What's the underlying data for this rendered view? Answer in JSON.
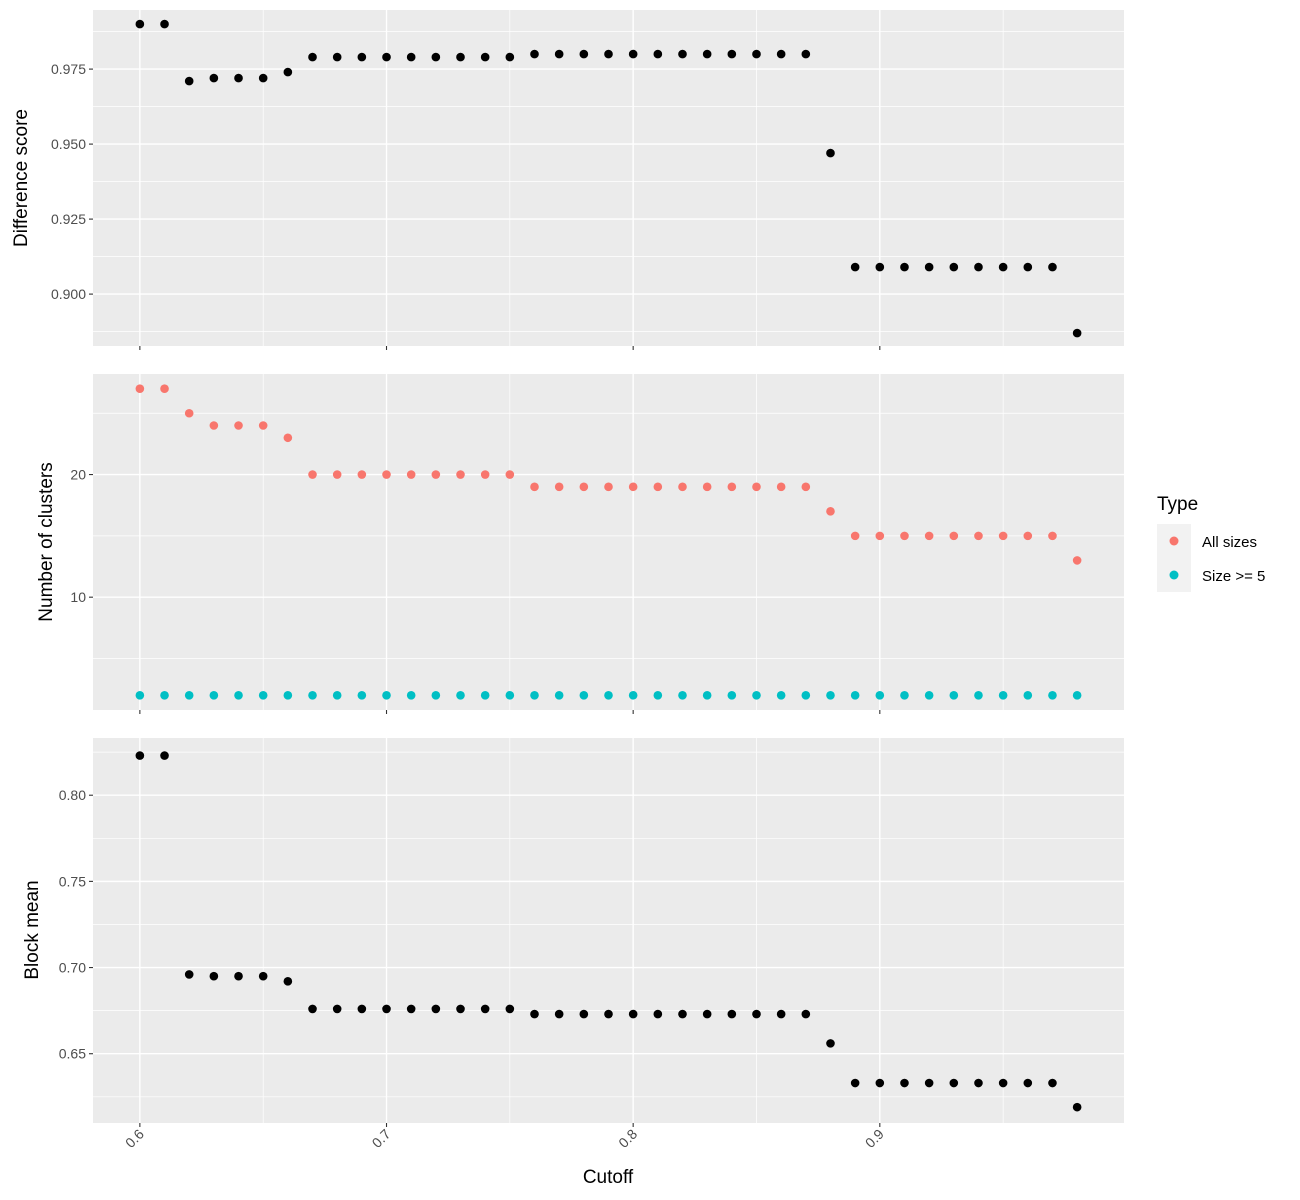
{
  "chart_data": {
    "type": "scatter",
    "xlabel": "Cutoff",
    "x_ticks": [
      0.6,
      0.7,
      0.8,
      0.9
    ],
    "x_tick_labels": [
      "0.6",
      "0.7",
      "0.8",
      "0.9"
    ],
    "xlim": [
      0.581,
      0.999
    ],
    "x": [
      0.6,
      0.61,
      0.62,
      0.63,
      0.64,
      0.65,
      0.66,
      0.67,
      0.68,
      0.69,
      0.7,
      0.71,
      0.72,
      0.73,
      0.74,
      0.75,
      0.76,
      0.77,
      0.78,
      0.79,
      0.8,
      0.81,
      0.82,
      0.83,
      0.84,
      0.85,
      0.86,
      0.87,
      0.88,
      0.89,
      0.9,
      0.91,
      0.92,
      0.93,
      0.94,
      0.95,
      0.96,
      0.97,
      0.98
    ],
    "legend": {
      "title": "Type",
      "position": "right",
      "entries": [
        {
          "label": "All sizes",
          "color": "#F8766D"
        },
        {
          "label": "Size >= 5",
          "color": "#00BFC4"
        }
      ]
    },
    "panels": [
      {
        "ylabel": "Difference score",
        "ylim": [
          0.8827,
          0.9947
        ],
        "y_ticks": [
          0.9,
          0.925,
          0.95,
          0.975
        ],
        "y_tick_labels": [
          "0.900",
          "0.925",
          "0.950",
          "0.975"
        ],
        "series": [
          {
            "color": "#000000",
            "values": [
              0.99,
              0.99,
              0.971,
              0.972,
              0.972,
              0.972,
              0.974,
              0.979,
              0.979,
              0.979,
              0.979,
              0.979,
              0.979,
              0.979,
              0.979,
              0.979,
              0.98,
              0.98,
              0.98,
              0.98,
              0.98,
              0.98,
              0.98,
              0.98,
              0.98,
              0.98,
              0.98,
              0.98,
              0.947,
              0.909,
              0.909,
              0.909,
              0.909,
              0.909,
              0.909,
              0.909,
              0.909,
              0.909,
              0.887
            ]
          }
        ]
      },
      {
        "ylabel": "Number of clusters",
        "ylim": [
          0.8,
          28.2
        ],
        "y_ticks": [
          10,
          20
        ],
        "y_tick_labels": [
          "10",
          "20"
        ],
        "series": [
          {
            "name": "All sizes",
            "color": "#F8766D",
            "values": [
              27,
              27,
              25,
              24,
              24,
              24,
              23,
              20,
              20,
              20,
              20,
              20,
              20,
              20,
              20,
              20,
              19,
              19,
              19,
              19,
              19,
              19,
              19,
              19,
              19,
              19,
              19,
              19,
              17,
              15,
              15,
              15,
              15,
              15,
              15,
              15,
              15,
              15,
              13
            ]
          },
          {
            "name": "Size >= 5",
            "color": "#00BFC4",
            "values": [
              2,
              2,
              2,
              2,
              2,
              2,
              2,
              2,
              2,
              2,
              2,
              2,
              2,
              2,
              2,
              2,
              2,
              2,
              2,
              2,
              2,
              2,
              2,
              2,
              2,
              2,
              2,
              2,
              2,
              2,
              2,
              2,
              2,
              2,
              2,
              2,
              2,
              2,
              2
            ]
          }
        ]
      },
      {
        "ylabel": "Block mean",
        "ylim": [
          0.6098,
          0.8332
        ],
        "y_ticks": [
          0.65,
          0.7,
          0.75,
          0.8
        ],
        "y_tick_labels": [
          "0.65",
          "0.70",
          "0.75",
          "0.80"
        ],
        "series": [
          {
            "color": "#000000",
            "values": [
              0.823,
              0.823,
              0.696,
              0.695,
              0.695,
              0.695,
              0.692,
              0.676,
              0.676,
              0.676,
              0.676,
              0.676,
              0.676,
              0.676,
              0.676,
              0.676,
              0.673,
              0.673,
              0.673,
              0.673,
              0.673,
              0.673,
              0.673,
              0.673,
              0.673,
              0.673,
              0.673,
              0.673,
              0.656,
              0.633,
              0.633,
              0.633,
              0.633,
              0.633,
              0.633,
              0.633,
              0.633,
              0.633,
              0.619
            ]
          }
        ]
      }
    ]
  }
}
